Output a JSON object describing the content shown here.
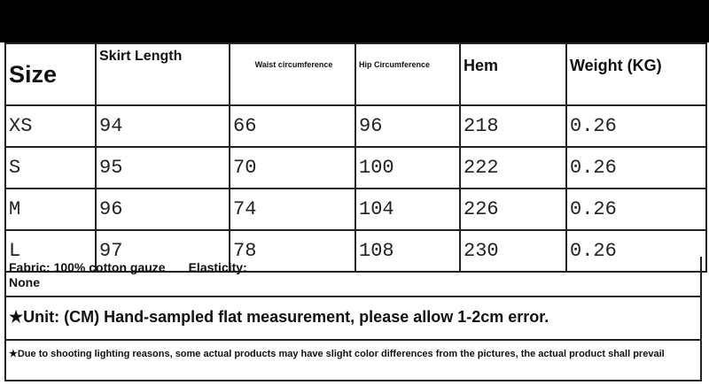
{
  "table": {
    "headers": [
      "Size",
      "Skirt Length",
      "Waist circumference",
      "Hip Circumference",
      "Hem",
      "Weight (KG)"
    ],
    "rows": [
      [
        "XS",
        "94",
        "66",
        "96",
        "218",
        "0.26"
      ],
      [
        "S",
        "95",
        "70",
        "100",
        "222",
        "0.26"
      ],
      [
        "M",
        "96",
        "74",
        "104",
        "226",
        "0.26"
      ],
      [
        "L",
        "97",
        "78",
        "108",
        "230",
        "0.26"
      ]
    ]
  },
  "notes": {
    "fabric": "Fabric: 100% cotton gauze",
    "elasticity": "Elasticity:",
    "elasticity_value": "None",
    "unit": "★Unit: (CM) Hand-sampled flat measurement, please allow 1-2cm error.",
    "disclaimer": "★Due to shooting lighting reasons, some actual products may have slight color differences from the pictures, the actual product shall prevail"
  }
}
